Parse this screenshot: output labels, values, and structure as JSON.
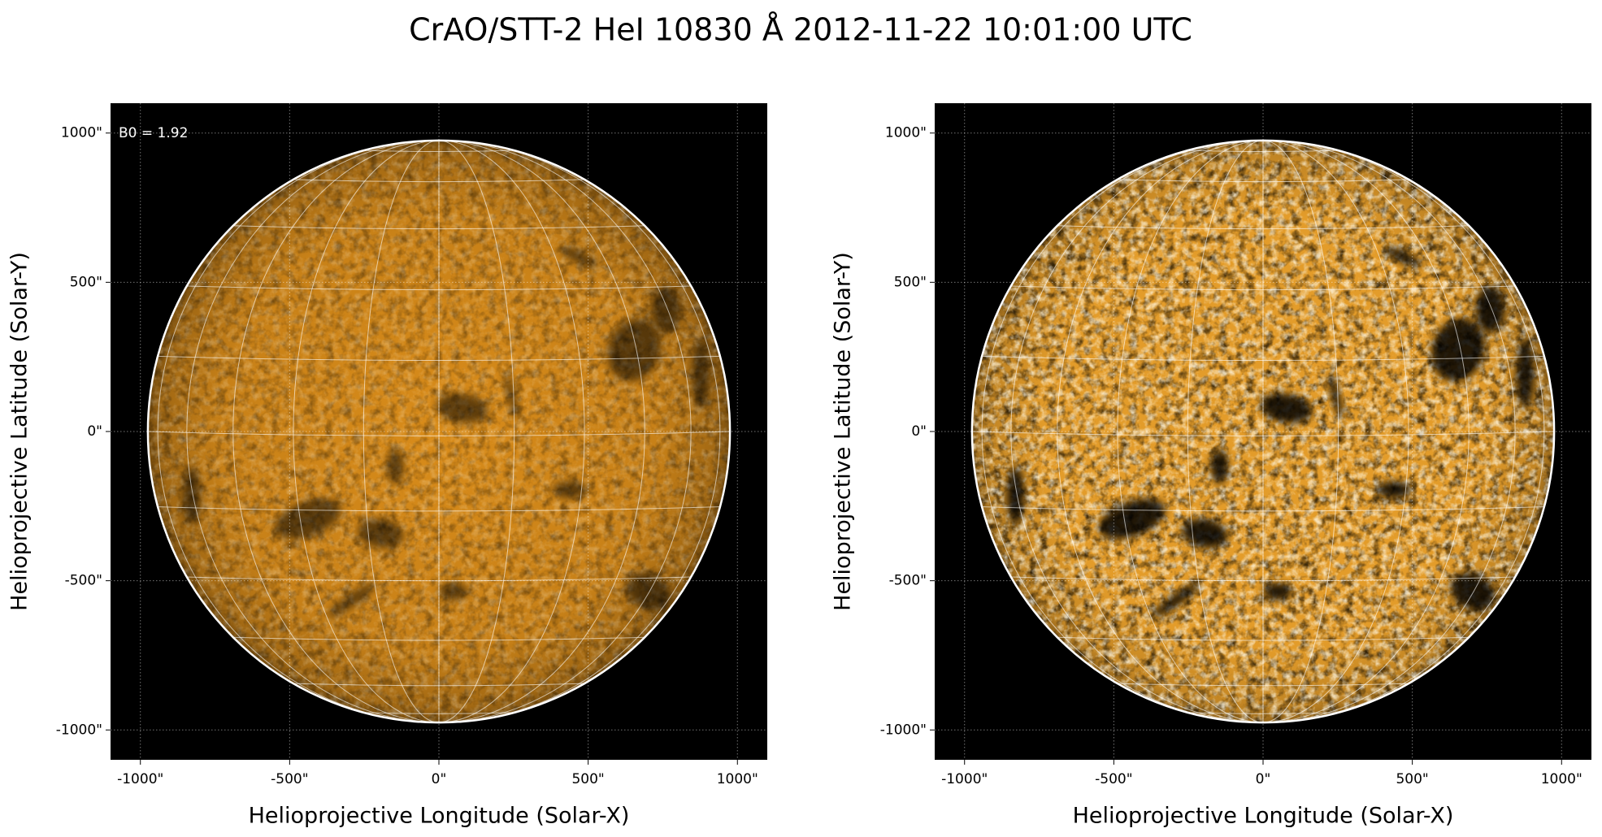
{
  "title": "CrAO/STT-2 HeI 10830 Å 2012-11-22 10:01:00 UTC",
  "chart_data": [
    {
      "type": "image",
      "xlabel": "Helioprojective Longitude (Solar-X)",
      "ylabel": "Helioprojective Latitude (Solar-Y)",
      "annotation": "B0 = 1.92",
      "xlim": [
        -1100,
        1100
      ],
      "ylim": [
        -1100,
        1100
      ],
      "xticks": [
        {
          "value": -1000,
          "label": "-1000\""
        },
        {
          "value": -500,
          "label": "-500\""
        },
        {
          "value": 0,
          "label": "0\""
        },
        {
          "value": 500,
          "label": "500\""
        },
        {
          "value": 1000,
          "label": "1000\""
        }
      ],
      "yticks": [
        {
          "value": -1000,
          "label": "-1000\""
        },
        {
          "value": -500,
          "label": "-500\""
        },
        {
          "value": 0,
          "label": "0\""
        },
        {
          "value": 500,
          "label": "500\""
        },
        {
          "value": 1000,
          "label": "1000\""
        }
      ],
      "grid": true,
      "solar_radius": 975,
      "color": "#d98c1a",
      "contrast": "normal"
    },
    {
      "type": "image",
      "xlabel": "Helioprojective Longitude (Solar-X)",
      "ylabel": "Helioprojective Latitude (Solar-Y)",
      "xlim": [
        -1100,
        1100
      ],
      "ylim": [
        -1100,
        1100
      ],
      "xticks": [
        {
          "value": -1000,
          "label": "-1000\""
        },
        {
          "value": -500,
          "label": "-500\""
        },
        {
          "value": 0,
          "label": "0\""
        },
        {
          "value": 500,
          "label": "500\""
        },
        {
          "value": 1000,
          "label": "1000\""
        }
      ],
      "yticks": [
        {
          "value": -1000,
          "label": "-1000\""
        },
        {
          "value": -500,
          "label": "-500\""
        },
        {
          "value": 0,
          "label": "0\""
        },
        {
          "value": 500,
          "label": "500\""
        },
        {
          "value": 1000,
          "label": "1000\""
        }
      ],
      "grid": true,
      "solar_radius": 975,
      "color": "#e39c2a",
      "contrast": "high"
    }
  ]
}
